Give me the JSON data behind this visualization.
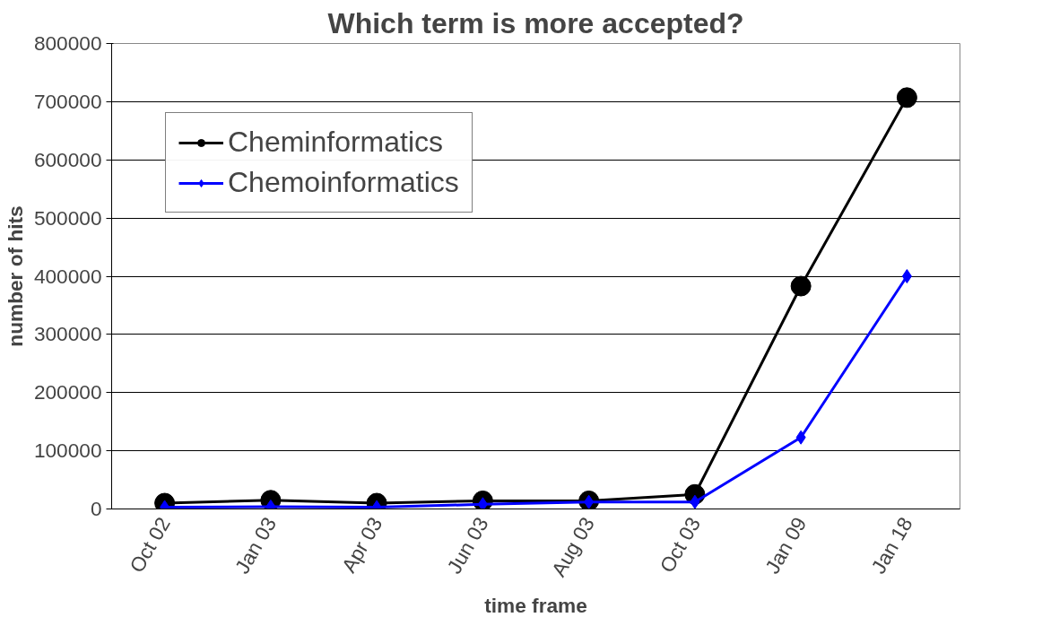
{
  "chart_data": {
    "type": "line",
    "title": "Which term is more accepted?",
    "xlabel": "time frame",
    "ylabel": "number of hits",
    "categories": [
      "Oct 02",
      "Jan 03",
      "Apr 03",
      "Jun 03",
      "Aug 03",
      "Oct 03",
      "Jan 09",
      "Jan 18"
    ],
    "series": [
      {
        "name": "Cheminformatics",
        "color": "#000000",
        "marker": "circle",
        "values": [
          10000,
          15000,
          10000,
          14000,
          14000,
          25000,
          383000,
          707000
        ]
      },
      {
        "name": "Chemoinformatics",
        "color": "#0000ff",
        "marker": "diamond",
        "values": [
          3000,
          4000,
          3000,
          8000,
          12000,
          12000,
          123000,
          400000
        ]
      }
    ],
    "ylim": [
      0,
      800000
    ],
    "yticks": [
      0,
      100000,
      200000,
      300000,
      400000,
      500000,
      600000,
      700000,
      800000
    ],
    "grid": "y",
    "legend": "top left",
    "line_style": "solid"
  }
}
